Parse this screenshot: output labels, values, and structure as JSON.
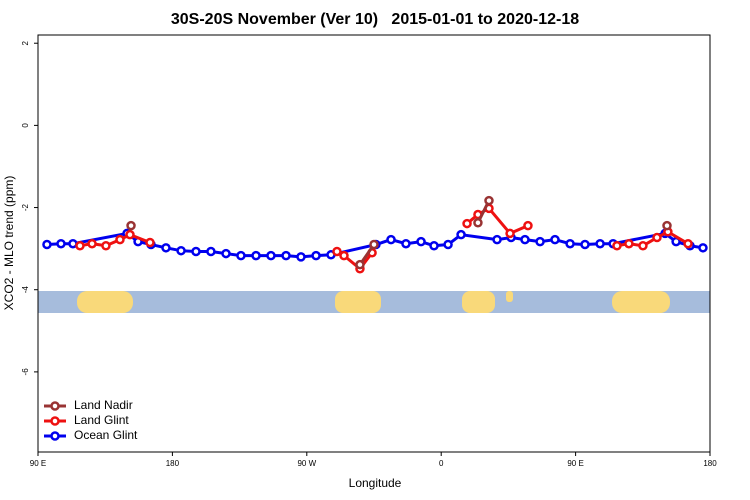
{
  "chart_data": {
    "type": "line",
    "title": "30S-20S November (Ver 10)   2015-01-01 to 2020-12-18",
    "x_label": "Longitude",
    "y_label": "XCO2 - MLO trend (ppm)",
    "xlim": [
      90,
      540
    ],
    "xticks": [
      {
        "value": 90,
        "label": "90 E"
      },
      {
        "value": 180,
        "label": "180"
      },
      {
        "value": 270,
        "label": "90 W"
      },
      {
        "value": 360,
        "label": "0"
      },
      {
        "value": 450,
        "label": "90 E"
      },
      {
        "value": 540,
        "label": "180"
      }
    ],
    "ylim": [
      -7.95,
      2.2
    ],
    "yticks": [
      2,
      0,
      -2,
      -4,
      -6
    ],
    "grid": false,
    "legend": "bottomleft",
    "series": [
      {
        "name": "Land Nadir",
        "color": "#993333",
        "x": [
          152.3,
          null,
          305.6,
          315.0,
          null,
          384.6,
          392.0,
          null,
          511.2
        ],
        "values": [
          -2.44,
          null,
          -3.39,
          -2.9,
          null,
          -2.37,
          -1.83,
          null,
          -2.44
        ]
      },
      {
        "name": "Land Glint",
        "color": "#ee1111",
        "x": [
          118.1,
          126.2,
          135.5,
          144.9,
          151.6,
          165.0,
          null,
          290.2,
          294.9,
          305.6,
          313.7,
          null,
          377.3,
          384.6,
          392.0,
          406.1,
          418.1,
          null,
          477.7,
          485.7,
          495.1,
          504.5,
          511.8,
          525.3
        ],
        "values": [
          -2.93,
          -2.88,
          -2.93,
          -2.78,
          -2.66,
          -2.85,
          null,
          -3.07,
          -3.17,
          -3.49,
          -3.1,
          null,
          -2.39,
          -2.17,
          -2.02,
          -2.63,
          -2.44,
          null,
          -2.93,
          -2.88,
          -2.93,
          -2.73,
          -2.59,
          -2.88
        ]
      },
      {
        "name": "Ocean Glint",
        "color": "#0000ee",
        "x": [
          96.0,
          105.4,
          113.4,
          149.6,
          157.0,
          165.7,
          175.7,
          185.8,
          195.8,
          205.8,
          215.9,
          225.9,
          236.0,
          246.0,
          256.1,
          266.1,
          276.2,
          286.2,
          316.3,
          326.4,
          336.4,
          346.5,
          355.2,
          364.6,
          373.3,
          397.4,
          406.8,
          416.1,
          426.2,
          436.2,
          446.3,
          456.3,
          466.4,
          475.1,
          509.9,
          517.3,
          526.6,
          535.3
        ],
        "values": [
          -2.9,
          -2.88,
          -2.88,
          -2.63,
          -2.83,
          -2.9,
          -2.98,
          -3.05,
          -3.07,
          -3.07,
          -3.12,
          -3.17,
          -3.17,
          -3.17,
          -3.17,
          -3.2,
          -3.17,
          -3.15,
          -2.9,
          -2.78,
          -2.88,
          -2.83,
          -2.93,
          -2.9,
          -2.66,
          -2.78,
          -2.73,
          -2.78,
          -2.83,
          -2.78,
          -2.88,
          -2.9,
          -2.88,
          -2.88,
          -2.63,
          -2.83,
          -2.93,
          -2.98
        ]
      }
    ]
  }
}
